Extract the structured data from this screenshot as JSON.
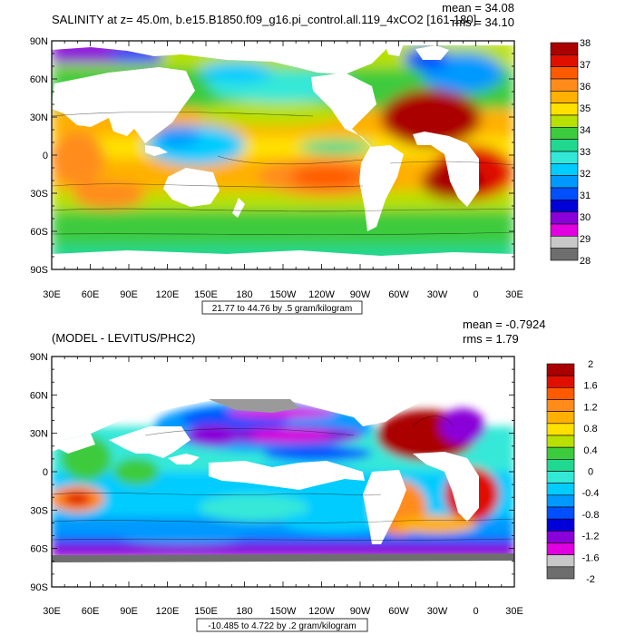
{
  "chart_data": [
    {
      "type": "heatmap",
      "title": "SALINITY at z=  45.0m, b.e15.B1850.f09_g16.pi_control.all.119_4xCO2 [161-180]",
      "stats": {
        "mean": "mean = 34.08",
        "rms": "rms = 34.10"
      },
      "x_tick_labels": [
        "30E",
        "60E",
        "90E",
        "120E",
        "150E",
        "180",
        "150W",
        "120W",
        "90W",
        "60W",
        "30W",
        "0",
        "30E"
      ],
      "y_tick_labels": [
        "90N",
        "60N",
        "30N",
        "0",
        "30S",
        "60S",
        "90S"
      ],
      "contour_note": "21.77 to 44.76 by .5 gram/kilogram",
      "colorbar": {
        "labels": [
          "38",
          "37",
          "36",
          "35",
          "34",
          "33",
          "32",
          "31",
          "30",
          "29",
          "28"
        ],
        "colors": [
          "#aa0000",
          "#e01000",
          "#ff5a00",
          "#ff8c1a",
          "#ffb000",
          "#ffe000",
          "#b8e000",
          "#3ccb3c",
          "#20d890",
          "#34e8d8",
          "#00ccff",
          "#0099ff",
          "#0050ff",
          "#0000d8",
          "#8a00d8",
          "#e000e0",
          "#c8c8c8",
          "#6e6e6e"
        ]
      },
      "ylim": [
        -90,
        90
      ],
      "xlim": [
        30,
        390
      ]
    },
    {
      "type": "heatmap",
      "title": "(MODEL - LEVITUS/PHC2)",
      "stats": {
        "mean": "mean = -0.7924",
        "rms": "rms = 1.79"
      },
      "x_tick_labels": [
        "30E",
        "60E",
        "90E",
        "120E",
        "150E",
        "180",
        "150W",
        "120W",
        "90W",
        "60W",
        "30W",
        "0",
        "30E"
      ],
      "y_tick_labels": [
        "90N",
        "60N",
        "30N",
        "0",
        "30S",
        "60S",
        "90S"
      ],
      "contour_note": "-10.485 to 4.722 by .2 gram/kilogram",
      "colorbar": {
        "labels": [
          "2",
          "1.6",
          "1.2",
          "0.8",
          "0.4",
          "0",
          "-0.4",
          "-0.8",
          "-1.2",
          "-1.6",
          "-2"
        ],
        "colors": [
          "#aa0000",
          "#e01000",
          "#ff5a00",
          "#ff8c1a",
          "#ffb000",
          "#ffe000",
          "#b8e000",
          "#3ccb3c",
          "#20d890",
          "#34e8d8",
          "#00ccff",
          "#0099ff",
          "#0050ff",
          "#0000d8",
          "#8a00d8",
          "#e000e0",
          "#c8c8c8",
          "#6e6e6e"
        ]
      },
      "ylim": [
        -90,
        90
      ],
      "xlim": [
        30,
        390
      ]
    }
  ]
}
